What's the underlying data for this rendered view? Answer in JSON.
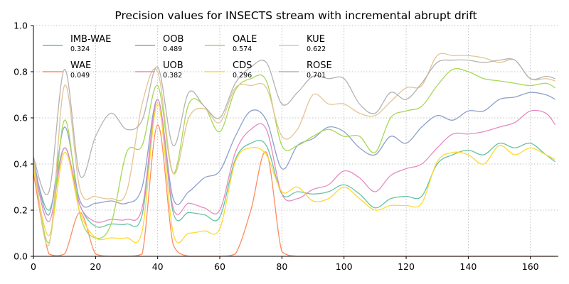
{
  "chart_data": {
    "type": "line",
    "title": "Precision values for INSECTS stream with incremental abrupt drift",
    "xlabel": "",
    "ylabel": "",
    "xlim": [
      0,
      169
    ],
    "ylim": [
      0,
      1.0
    ],
    "x_ticks": [
      0,
      20,
      40,
      60,
      80,
      100,
      120,
      140,
      160
    ],
    "y_ticks": [
      0.0,
      0.2,
      0.4,
      0.6,
      0.8,
      1.0
    ],
    "grid": true,
    "grid_style": "dotted",
    "legend_position": "top-left",
    "x": [
      0,
      5,
      10,
      15,
      20,
      25,
      30,
      35,
      40,
      45,
      50,
      55,
      60,
      65,
      70,
      75,
      80,
      85,
      90,
      95,
      100,
      105,
      110,
      115,
      120,
      125,
      130,
      135,
      140,
      145,
      150,
      155,
      160,
      165,
      168
    ],
    "series": [
      {
        "name": "IMB-WAE",
        "score": "0.324",
        "color": "#66c2a5",
        "values": [
          0.4,
          0.2,
          0.47,
          0.22,
          0.13,
          0.14,
          0.14,
          0.18,
          0.68,
          0.19,
          0.19,
          0.18,
          0.17,
          0.42,
          0.49,
          0.48,
          0.27,
          0.28,
          0.27,
          0.28,
          0.31,
          0.27,
          0.21,
          0.25,
          0.26,
          0.26,
          0.4,
          0.44,
          0.46,
          0.44,
          0.49,
          0.47,
          0.49,
          0.44,
          0.41
        ]
      },
      {
        "name": "WAE",
        "score": "0.049",
        "color": "#fc8d62",
        "values": [
          0.36,
          0.01,
          0.01,
          0.19,
          0.01,
          0.0,
          0.0,
          0.01,
          0.57,
          0.05,
          0.0,
          0.0,
          0.0,
          0.01,
          0.2,
          0.45,
          0.02,
          0.0,
          0.0,
          0.0,
          0.0,
          0.0,
          0.0,
          0.0,
          0.0,
          0.0,
          0.0,
          0.0,
          0.0,
          0.0,
          0.0,
          0.0,
          0.0,
          0.0,
          0.0
        ]
      },
      {
        "name": "OOB",
        "score": "0.489",
        "color": "#8da0cb",
        "values": [
          0.42,
          0.18,
          0.56,
          0.24,
          0.23,
          0.24,
          0.23,
          0.3,
          0.68,
          0.25,
          0.28,
          0.34,
          0.37,
          0.52,
          0.63,
          0.59,
          0.38,
          0.48,
          0.51,
          0.56,
          0.54,
          0.47,
          0.44,
          0.52,
          0.49,
          0.56,
          0.61,
          0.59,
          0.63,
          0.63,
          0.68,
          0.69,
          0.71,
          0.7,
          0.68
        ]
      },
      {
        "name": "UOB",
        "score": "0.382",
        "color": "#e78ac3",
        "values": [
          0.4,
          0.15,
          0.47,
          0.22,
          0.15,
          0.16,
          0.16,
          0.21,
          0.68,
          0.21,
          0.23,
          0.21,
          0.2,
          0.45,
          0.55,
          0.55,
          0.27,
          0.25,
          0.29,
          0.31,
          0.37,
          0.34,
          0.28,
          0.35,
          0.38,
          0.4,
          0.47,
          0.53,
          0.53,
          0.54,
          0.56,
          0.58,
          0.63,
          0.62,
          0.57
        ]
      },
      {
        "name": "OALE",
        "score": "0.574",
        "color": "#a6d854",
        "values": [
          0.42,
          0.06,
          0.59,
          0.18,
          0.08,
          0.14,
          0.45,
          0.48,
          0.74,
          0.36,
          0.66,
          0.65,
          0.54,
          0.72,
          0.77,
          0.76,
          0.48,
          0.48,
          0.52,
          0.55,
          0.52,
          0.52,
          0.45,
          0.6,
          0.63,
          0.65,
          0.74,
          0.81,
          0.8,
          0.77,
          0.76,
          0.75,
          0.74,
          0.75,
          0.73
        ]
      },
      {
        "name": "CDS",
        "score": "0.296",
        "color": "#ffd92f",
        "values": [
          0.38,
          0.09,
          0.45,
          0.19,
          0.08,
          0.08,
          0.08,
          0.11,
          0.66,
          0.1,
          0.1,
          0.11,
          0.12,
          0.41,
          0.47,
          0.44,
          0.28,
          0.3,
          0.24,
          0.25,
          0.3,
          0.25,
          0.2,
          0.22,
          0.22,
          0.23,
          0.41,
          0.45,
          0.44,
          0.4,
          0.48,
          0.44,
          0.47,
          0.44,
          0.42
        ]
      },
      {
        "name": "KUE",
        "score": "0.622",
        "color": "#e5c494",
        "values": [
          0.42,
          0.05,
          0.74,
          0.29,
          0.26,
          0.25,
          0.28,
          0.66,
          0.8,
          0.36,
          0.6,
          0.64,
          0.58,
          0.73,
          0.74,
          0.73,
          0.52,
          0.55,
          0.7,
          0.66,
          0.66,
          0.62,
          0.61,
          0.67,
          0.73,
          0.74,
          0.87,
          0.87,
          0.87,
          0.86,
          0.84,
          0.85,
          0.77,
          0.77,
          0.76
        ]
      },
      {
        "name": "ROSE",
        "score": "0.701",
        "color": "#b3b3b3",
        "values": [
          0.43,
          0.28,
          0.81,
          0.35,
          0.52,
          0.62,
          0.55,
          0.59,
          0.82,
          0.48,
          0.71,
          0.65,
          0.6,
          0.75,
          0.82,
          0.84,
          0.66,
          0.71,
          0.78,
          0.77,
          0.77,
          0.66,
          0.62,
          0.71,
          0.68,
          0.75,
          0.84,
          0.85,
          0.85,
          0.84,
          0.85,
          0.85,
          0.77,
          0.78,
          0.77
        ]
      }
    ]
  }
}
